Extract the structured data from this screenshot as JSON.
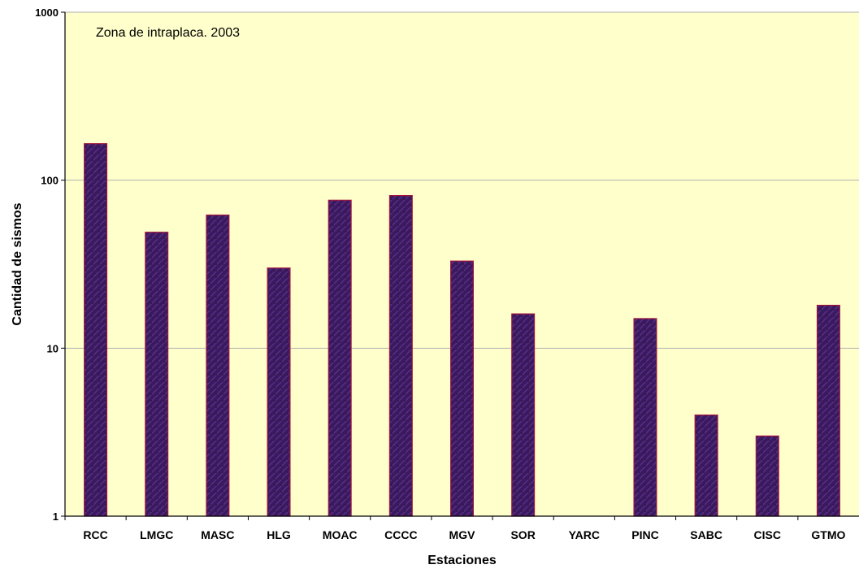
{
  "chart_data": {
    "type": "bar",
    "title": "",
    "annotation": "Zona de intraplaca. 2003",
    "xlabel": "Estaciones",
    "ylabel": "Cantidad de sismos",
    "yscale": "log",
    "ylim": [
      1,
      1000
    ],
    "yticks": [
      "1",
      "10",
      "100",
      "1000"
    ],
    "grid": true,
    "categories": [
      "RCC",
      "LMGC",
      "MASC",
      "HLG",
      "MOAC",
      "CCCC",
      "MGV",
      "SOR",
      "YARC",
      "PINC",
      "SABC",
      "CISC",
      "GTMO"
    ],
    "values": [
      165,
      49,
      62,
      30,
      76,
      81,
      33,
      16,
      0,
      15,
      4,
      3,
      18
    ],
    "colors": {
      "plot_background": "#ffffcc",
      "bar_fill": "#3a1a5e",
      "bar_outline": "#a0153e",
      "grid": "#b0b0b0"
    }
  }
}
